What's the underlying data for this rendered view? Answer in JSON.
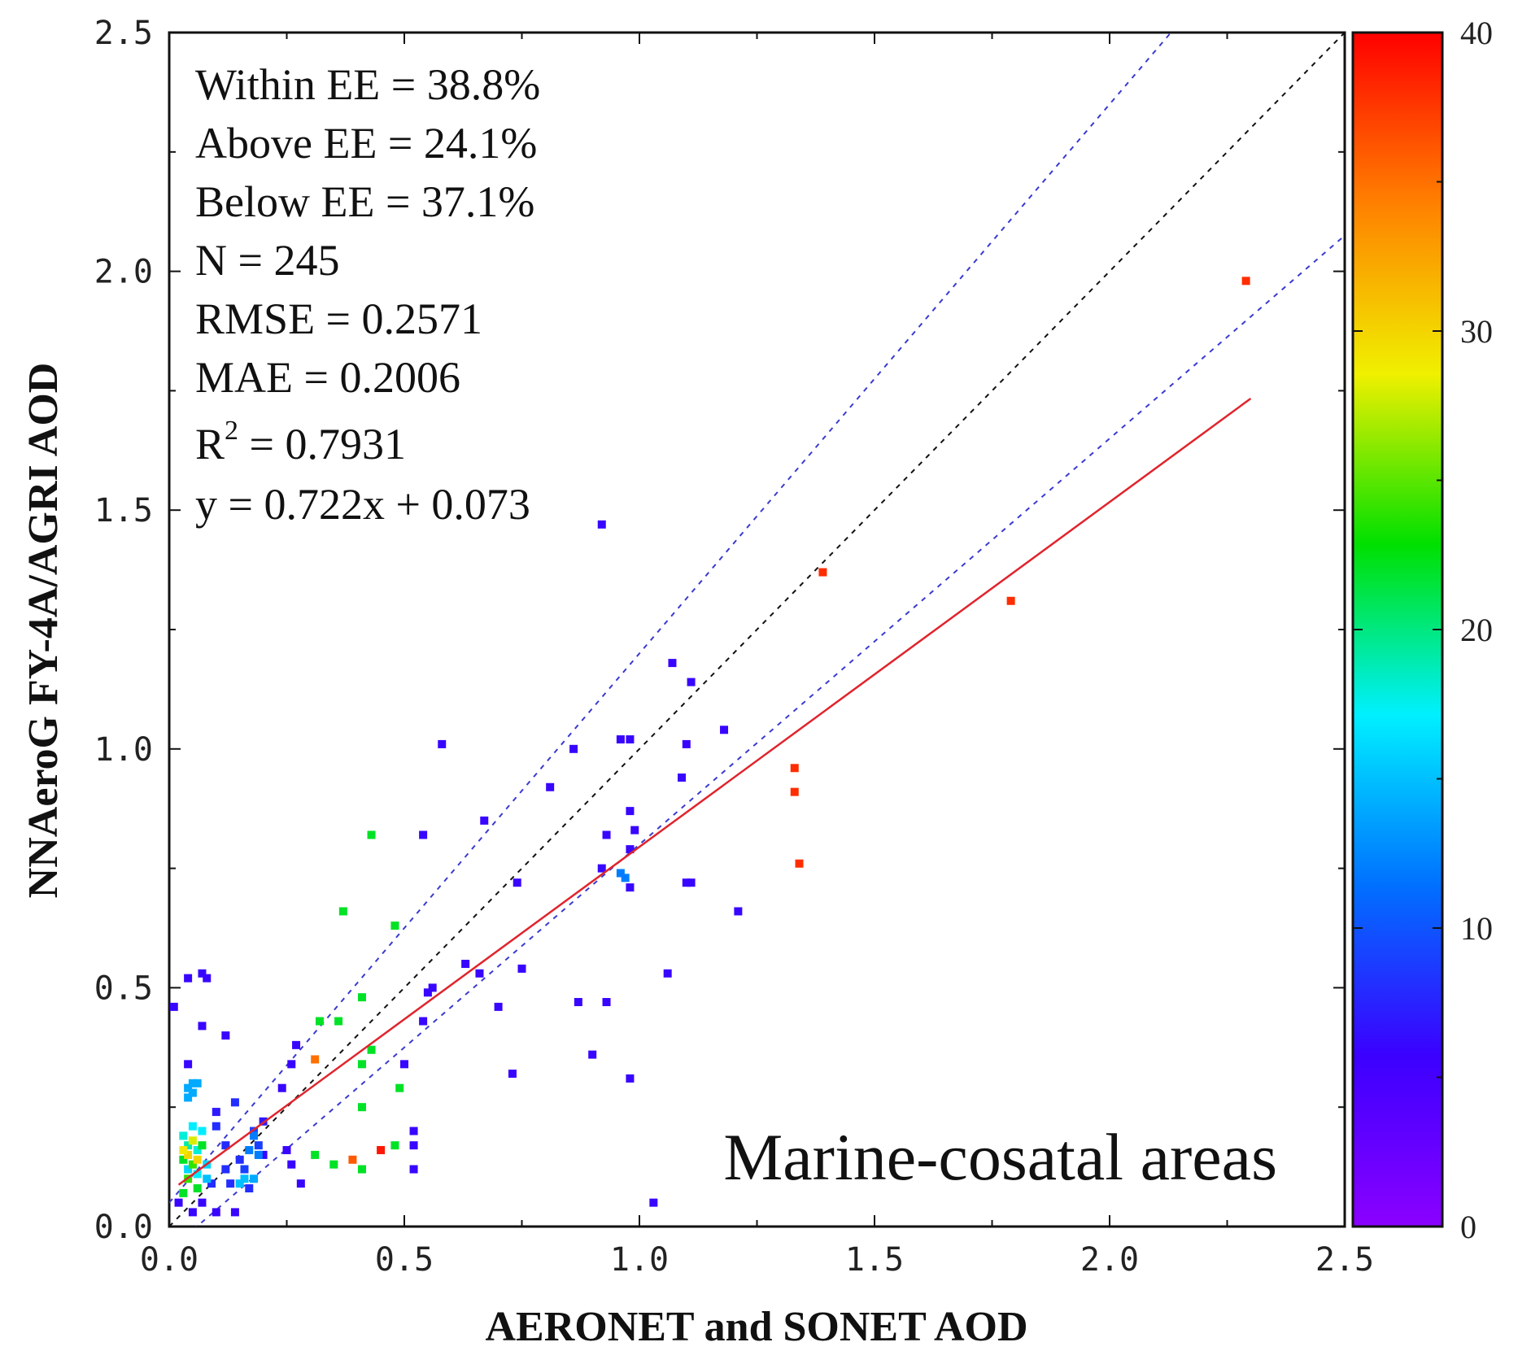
{
  "chart_data": {
    "type": "scatter",
    "xlabel": "AERONET and SONET AOD",
    "ylabel": "NNAeroG FY-4A/AGRI AOD",
    "xlim": [
      0,
      2.5
    ],
    "ylim": [
      0,
      2.5
    ],
    "xticks": [
      "0.0",
      "0.5",
      "1.0",
      "1.5",
      "2.0",
      "2.5"
    ],
    "yticks": [
      "0.0",
      "0.5",
      "1.0",
      "1.5",
      "2.0",
      "2.5"
    ],
    "stats": [
      "Within EE = 38.8%",
      "Above EE = 24.1%",
      "Below EE = 37.1%",
      "N = 245",
      "RMSE = 0.2571",
      "MAE = 0.2006"
    ],
    "r2": {
      "label": "R",
      "sup": "2",
      "value": " = 0.7931"
    },
    "equation": "y = 0.722x + 0.073",
    "region_label": "Marine-cosatal areas",
    "fit_line": {
      "slope": 0.722,
      "intercept": 0.073,
      "x_range": [
        0.02,
        2.3
      ],
      "color": "#e0242c"
    },
    "reference_lines": [
      {
        "name": "1:1",
        "style": "dashed",
        "color": "#111111",
        "slope": 1.0,
        "intercept": 0
      },
      {
        "name": "EE upper",
        "style": "dashed",
        "color": "#3a3ad0",
        "slope": 1.15,
        "intercept": 0.05
      },
      {
        "name": "EE lower",
        "style": "dashed",
        "color": "#3a3ad0",
        "slope": 0.85,
        "intercept": -0.05
      }
    ],
    "colorbar": {
      "min": 0,
      "max": 40,
      "ticks": [
        "0",
        "10",
        "20",
        "30",
        "40"
      ],
      "stops": [
        "#8b00ff",
        "#3b00ff",
        "#0070ff",
        "#00f0ff",
        "#00e000",
        "#f0f000",
        "#ff8000",
        "#ff0000"
      ]
    },
    "points": [
      [
        2.29,
        1.98,
        38
      ],
      [
        1.39,
        1.37,
        38
      ],
      [
        1.79,
        1.31,
        38
      ],
      [
        1.33,
        0.96,
        38
      ],
      [
        1.33,
        0.91,
        38
      ],
      [
        1.34,
        0.76,
        38
      ],
      [
        0.92,
        1.47,
        6
      ],
      [
        1.07,
        1.18,
        6
      ],
      [
        1.11,
        1.14,
        6
      ],
      [
        1.18,
        1.04,
        6
      ],
      [
        0.96,
        1.02,
        6
      ],
      [
        0.98,
        1.02,
        6
      ],
      [
        1.1,
        1.01,
        6
      ],
      [
        0.58,
        1.01,
        6
      ],
      [
        0.86,
        1.0,
        6
      ],
      [
        1.09,
        0.94,
        6
      ],
      [
        0.81,
        0.92,
        6
      ],
      [
        0.98,
        0.87,
        6
      ],
      [
        0.67,
        0.85,
        6
      ],
      [
        0.99,
        0.83,
        6
      ],
      [
        0.54,
        0.82,
        6
      ],
      [
        0.93,
        0.82,
        6
      ],
      [
        0.98,
        0.79,
        6
      ],
      [
        0.74,
        0.72,
        6
      ],
      [
        0.92,
        0.75,
        6
      ],
      [
        1.1,
        0.72,
        6
      ],
      [
        1.11,
        0.72,
        6
      ],
      [
        0.98,
        0.71,
        6
      ],
      [
        1.21,
        0.66,
        6
      ],
      [
        0.63,
        0.55,
        6
      ],
      [
        0.66,
        0.53,
        6
      ],
      [
        0.75,
        0.54,
        6
      ],
      [
        1.06,
        0.53,
        6
      ],
      [
        0.56,
        0.5,
        6
      ],
      [
        0.55,
        0.49,
        6
      ],
      [
        0.87,
        0.47,
        6
      ],
      [
        0.93,
        0.47,
        6
      ],
      [
        0.7,
        0.46,
        6
      ],
      [
        0.54,
        0.43,
        6
      ],
      [
        0.9,
        0.36,
        6
      ],
      [
        0.73,
        0.32,
        6
      ],
      [
        0.98,
        0.31,
        6
      ],
      [
        1.03,
        0.05,
        6
      ],
      [
        0.5,
        0.34,
        6
      ],
      [
        0.52,
        0.2,
        6
      ],
      [
        0.52,
        0.17,
        6
      ],
      [
        0.52,
        0.12,
        6
      ],
      [
        0.96,
        0.74,
        12
      ],
      [
        0.97,
        0.73,
        12
      ],
      [
        0.43,
        0.82,
        22
      ],
      [
        0.37,
        0.66,
        22
      ],
      [
        0.48,
        0.63,
        22
      ],
      [
        0.41,
        0.48,
        22
      ],
      [
        0.32,
        0.43,
        22
      ],
      [
        0.36,
        0.43,
        22
      ],
      [
        0.43,
        0.37,
        22
      ],
      [
        0.41,
        0.34,
        22
      ],
      [
        0.49,
        0.29,
        22
      ],
      [
        0.41,
        0.25,
        22
      ],
      [
        0.48,
        0.17,
        22
      ],
      [
        0.31,
        0.15,
        22
      ],
      [
        0.35,
        0.13,
        22
      ],
      [
        0.41,
        0.12,
        22
      ],
      [
        0.31,
        0.35,
        35
      ],
      [
        0.39,
        0.14,
        36
      ],
      [
        0.45,
        0.16,
        39
      ],
      [
        0.01,
        0.46,
        6
      ],
      [
        0.04,
        0.52,
        6
      ],
      [
        0.07,
        0.53,
        6
      ],
      [
        0.08,
        0.52,
        6
      ],
      [
        0.07,
        0.42,
        6
      ],
      [
        0.12,
        0.4,
        6
      ],
      [
        0.27,
        0.38,
        6
      ],
      [
        0.26,
        0.34,
        6
      ],
      [
        0.24,
        0.29,
        6
      ],
      [
        0.04,
        0.34,
        6
      ],
      [
        0.02,
        0.05,
        6
      ],
      [
        0.05,
        0.03,
        6
      ],
      [
        0.1,
        0.03,
        6
      ],
      [
        0.14,
        0.03,
        6
      ],
      [
        0.07,
        0.05,
        6
      ],
      [
        0.28,
        0.09,
        6
      ],
      [
        0.26,
        0.13,
        6
      ],
      [
        0.25,
        0.16,
        6
      ],
      [
        0.2,
        0.15,
        6
      ],
      [
        0.14,
        0.26,
        8
      ],
      [
        0.1,
        0.21,
        8
      ],
      [
        0.12,
        0.17,
        8
      ],
      [
        0.15,
        0.14,
        8
      ],
      [
        0.12,
        0.12,
        8
      ],
      [
        0.18,
        0.2,
        9
      ],
      [
        0.19,
        0.17,
        9
      ],
      [
        0.16,
        0.12,
        9
      ],
      [
        0.2,
        0.22,
        7
      ],
      [
        0.13,
        0.09,
        8
      ],
      [
        0.09,
        0.09,
        8
      ],
      [
        0.1,
        0.24,
        7
      ],
      [
        0.17,
        0.08,
        8
      ],
      [
        0.04,
        0.29,
        14
      ],
      [
        0.05,
        0.3,
        14
      ],
      [
        0.06,
        0.3,
        14
      ],
      [
        0.04,
        0.27,
        14
      ],
      [
        0.05,
        0.28,
        14
      ],
      [
        0.18,
        0.19,
        12
      ],
      [
        0.17,
        0.16,
        12
      ],
      [
        0.16,
        0.1,
        15
      ],
      [
        0.18,
        0.1,
        14
      ],
      [
        0.19,
        0.15,
        12
      ],
      [
        0.15,
        0.09,
        15
      ],
      [
        0.03,
        0.19,
        18
      ],
      [
        0.04,
        0.17,
        19
      ],
      [
        0.06,
        0.16,
        18
      ],
      [
        0.05,
        0.21,
        17
      ],
      [
        0.07,
        0.2,
        17
      ],
      [
        0.04,
        0.12,
        16
      ],
      [
        0.06,
        0.11,
        17
      ],
      [
        0.08,
        0.13,
        16
      ],
      [
        0.03,
        0.14,
        22
      ],
      [
        0.04,
        0.1,
        24
      ],
      [
        0.05,
        0.13,
        24
      ],
      [
        0.07,
        0.17,
        22
      ],
      [
        0.03,
        0.07,
        22
      ],
      [
        0.06,
        0.08,
        22
      ],
      [
        0.08,
        0.1,
        15
      ],
      [
        0.04,
        0.15,
        30
      ],
      [
        0.03,
        0.16,
        29
      ],
      [
        0.05,
        0.18,
        28
      ],
      [
        0.06,
        0.14,
        30
      ]
    ]
  }
}
